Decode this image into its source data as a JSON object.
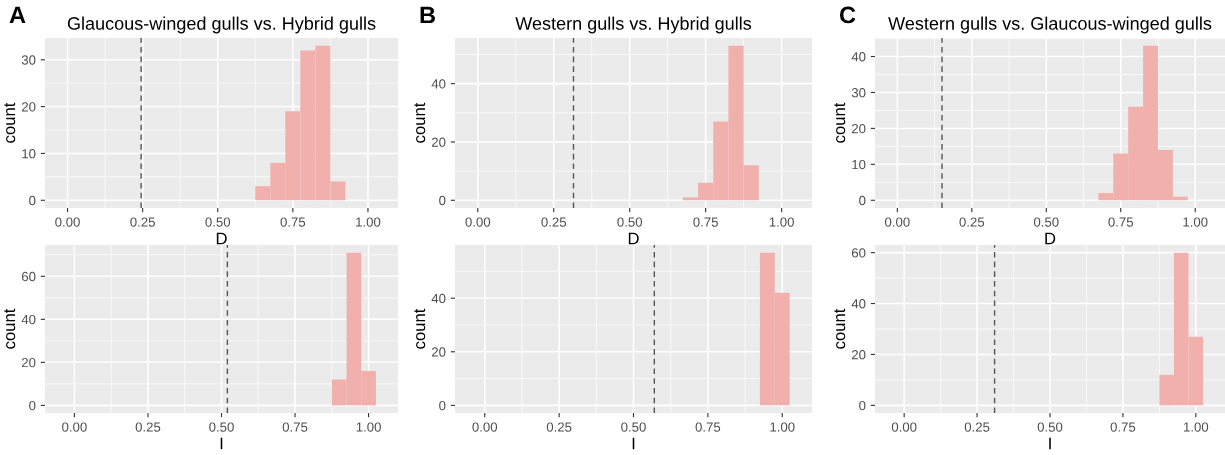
{
  "chart_data": [
    {
      "type": "histogram",
      "title": "Glaucous-winged gulls vs. Hybrid gulls",
      "annotations": [
        "A"
      ],
      "xlabel": "D",
      "ylabel": "count",
      "bins": [
        0.625,
        0.675,
        0.725,
        0.775,
        0.825,
        0.875,
        0.925
      ],
      "values": [
        3,
        8,
        19,
        32,
        33,
        4
      ],
      "color": "#f1b0ac",
      "xlim": [
        -0.075,
        1.1
      ],
      "ylim": [
        -1.65,
        34.65
      ],
      "xticks": [
        {
          "value": 0,
          "label": "0.00"
        },
        {
          "value": 0.25,
          "label": "0.25"
        },
        {
          "value": 0.5,
          "label": "0.50"
        },
        {
          "value": 0.75,
          "label": "0.75"
        },
        {
          "value": 1,
          "label": "1.00"
        }
      ],
      "yticks": [
        0,
        10,
        20,
        30
      ],
      "grid": true,
      "ref_lines": [
        {
          "axis": "x",
          "value": 0.245,
          "color": "#555555",
          "line_style": "dashed"
        }
      ]
    },
    {
      "type": "histogram",
      "title": "Western gulls vs. Hybrid gulls",
      "annotations": [
        "B"
      ],
      "xlabel": "D",
      "ylabel": "count",
      "bins": [
        0.675,
        0.725,
        0.775,
        0.825,
        0.875,
        0.925
      ],
      "values": [
        1,
        6,
        27,
        53,
        12
      ],
      "color": "#f1b0ac",
      "xlim": [
        -0.075,
        1.1
      ],
      "ylim": [
        -2.65,
        55.65
      ],
      "xticks": [
        {
          "value": 0,
          "label": "0.00"
        },
        {
          "value": 0.25,
          "label": "0.25"
        },
        {
          "value": 0.5,
          "label": "0.50"
        },
        {
          "value": 0.75,
          "label": "0.75"
        },
        {
          "value": 1,
          "label": "1.00"
        }
      ],
      "yticks": [
        0,
        20,
        40
      ],
      "grid": true,
      "ref_lines": [
        {
          "axis": "x",
          "value": 0.315,
          "color": "#555555",
          "line_style": "dashed"
        }
      ]
    },
    {
      "type": "histogram",
      "title": "Western gulls vs. Glaucous-winged gulls",
      "annotations": [
        "C"
      ],
      "xlabel": "D",
      "ylabel": "count",
      "bins": [
        0.675,
        0.725,
        0.775,
        0.825,
        0.875,
        0.925,
        0.975
      ],
      "values": [
        2,
        13,
        26,
        43,
        14,
        1
      ],
      "color": "#f1b0ac",
      "xlim": [
        -0.075,
        1.1
      ],
      "ylim": [
        -2.15,
        45.15
      ],
      "xticks": [
        {
          "value": 0,
          "label": "0.00"
        },
        {
          "value": 0.25,
          "label": "0.25"
        },
        {
          "value": 0.5,
          "label": "0.50"
        },
        {
          "value": 0.75,
          "label": "0.75"
        },
        {
          "value": 1,
          "label": "1.00"
        }
      ],
      "yticks": [
        0,
        10,
        20,
        30,
        40
      ],
      "grid": true,
      "ref_lines": [
        {
          "axis": "x",
          "value": 0.15,
          "color": "#555555",
          "line_style": "dashed"
        }
      ]
    },
    {
      "type": "histogram",
      "xlabel": "I",
      "ylabel": "count",
      "bins": [
        0.875,
        0.925,
        0.975,
        1.025
      ],
      "values": [
        12,
        71,
        16
      ],
      "color": "#f1b0ac",
      "xlim": [
        -0.1,
        1.1
      ],
      "ylim": [
        -3.55,
        74.55
      ],
      "xticks": [
        {
          "value": 0,
          "label": "0.00"
        },
        {
          "value": 0.25,
          "label": "0.25"
        },
        {
          "value": 0.5,
          "label": "0.50"
        },
        {
          "value": 0.75,
          "label": "0.75"
        },
        {
          "value": 1,
          "label": "1.00"
        }
      ],
      "yticks": [
        0,
        20,
        40,
        60
      ],
      "grid": true,
      "ref_lines": [
        {
          "axis": "x",
          "value": 0.52,
          "color": "#555555",
          "line_style": "dashed"
        }
      ]
    },
    {
      "type": "histogram",
      "xlabel": "I",
      "ylabel": "count",
      "bins": [
        0.925,
        0.975,
        1.025
      ],
      "values": [
        57,
        42
      ],
      "color": "#f1b0ac",
      "xlim": [
        -0.1,
        1.1
      ],
      "ylim": [
        -2.85,
        59.85
      ],
      "xticks": [
        {
          "value": 0,
          "label": "0.00"
        },
        {
          "value": 0.25,
          "label": "0.25"
        },
        {
          "value": 0.5,
          "label": "0.50"
        },
        {
          "value": 0.75,
          "label": "0.75"
        },
        {
          "value": 1,
          "label": "1.00"
        }
      ],
      "yticks": [
        0,
        20,
        40
      ],
      "grid": true,
      "ref_lines": [
        {
          "axis": "x",
          "value": 0.57,
          "color": "#555555",
          "line_style": "dashed"
        }
      ]
    },
    {
      "type": "histogram",
      "xlabel": "I",
      "ylabel": "count",
      "bins": [
        0.875,
        0.925,
        0.975,
        1.025
      ],
      "values": [
        12,
        60,
        27
      ],
      "color": "#f1b0ac",
      "xlim": [
        -0.1,
        1.1
      ],
      "ylim": [
        -3.0,
        63.0
      ],
      "xticks": [
        {
          "value": 0,
          "label": "0.00"
        },
        {
          "value": 0.25,
          "label": "0.25"
        },
        {
          "value": 0.5,
          "label": "0.50"
        },
        {
          "value": 0.75,
          "label": "0.75"
        },
        {
          "value": 1,
          "label": "1.00"
        }
      ],
      "yticks": [
        0,
        20,
        40,
        60
      ],
      "grid": true,
      "ref_lines": [
        {
          "axis": "x",
          "value": 0.31,
          "color": "#555555",
          "line_style": "dashed"
        }
      ]
    }
  ]
}
